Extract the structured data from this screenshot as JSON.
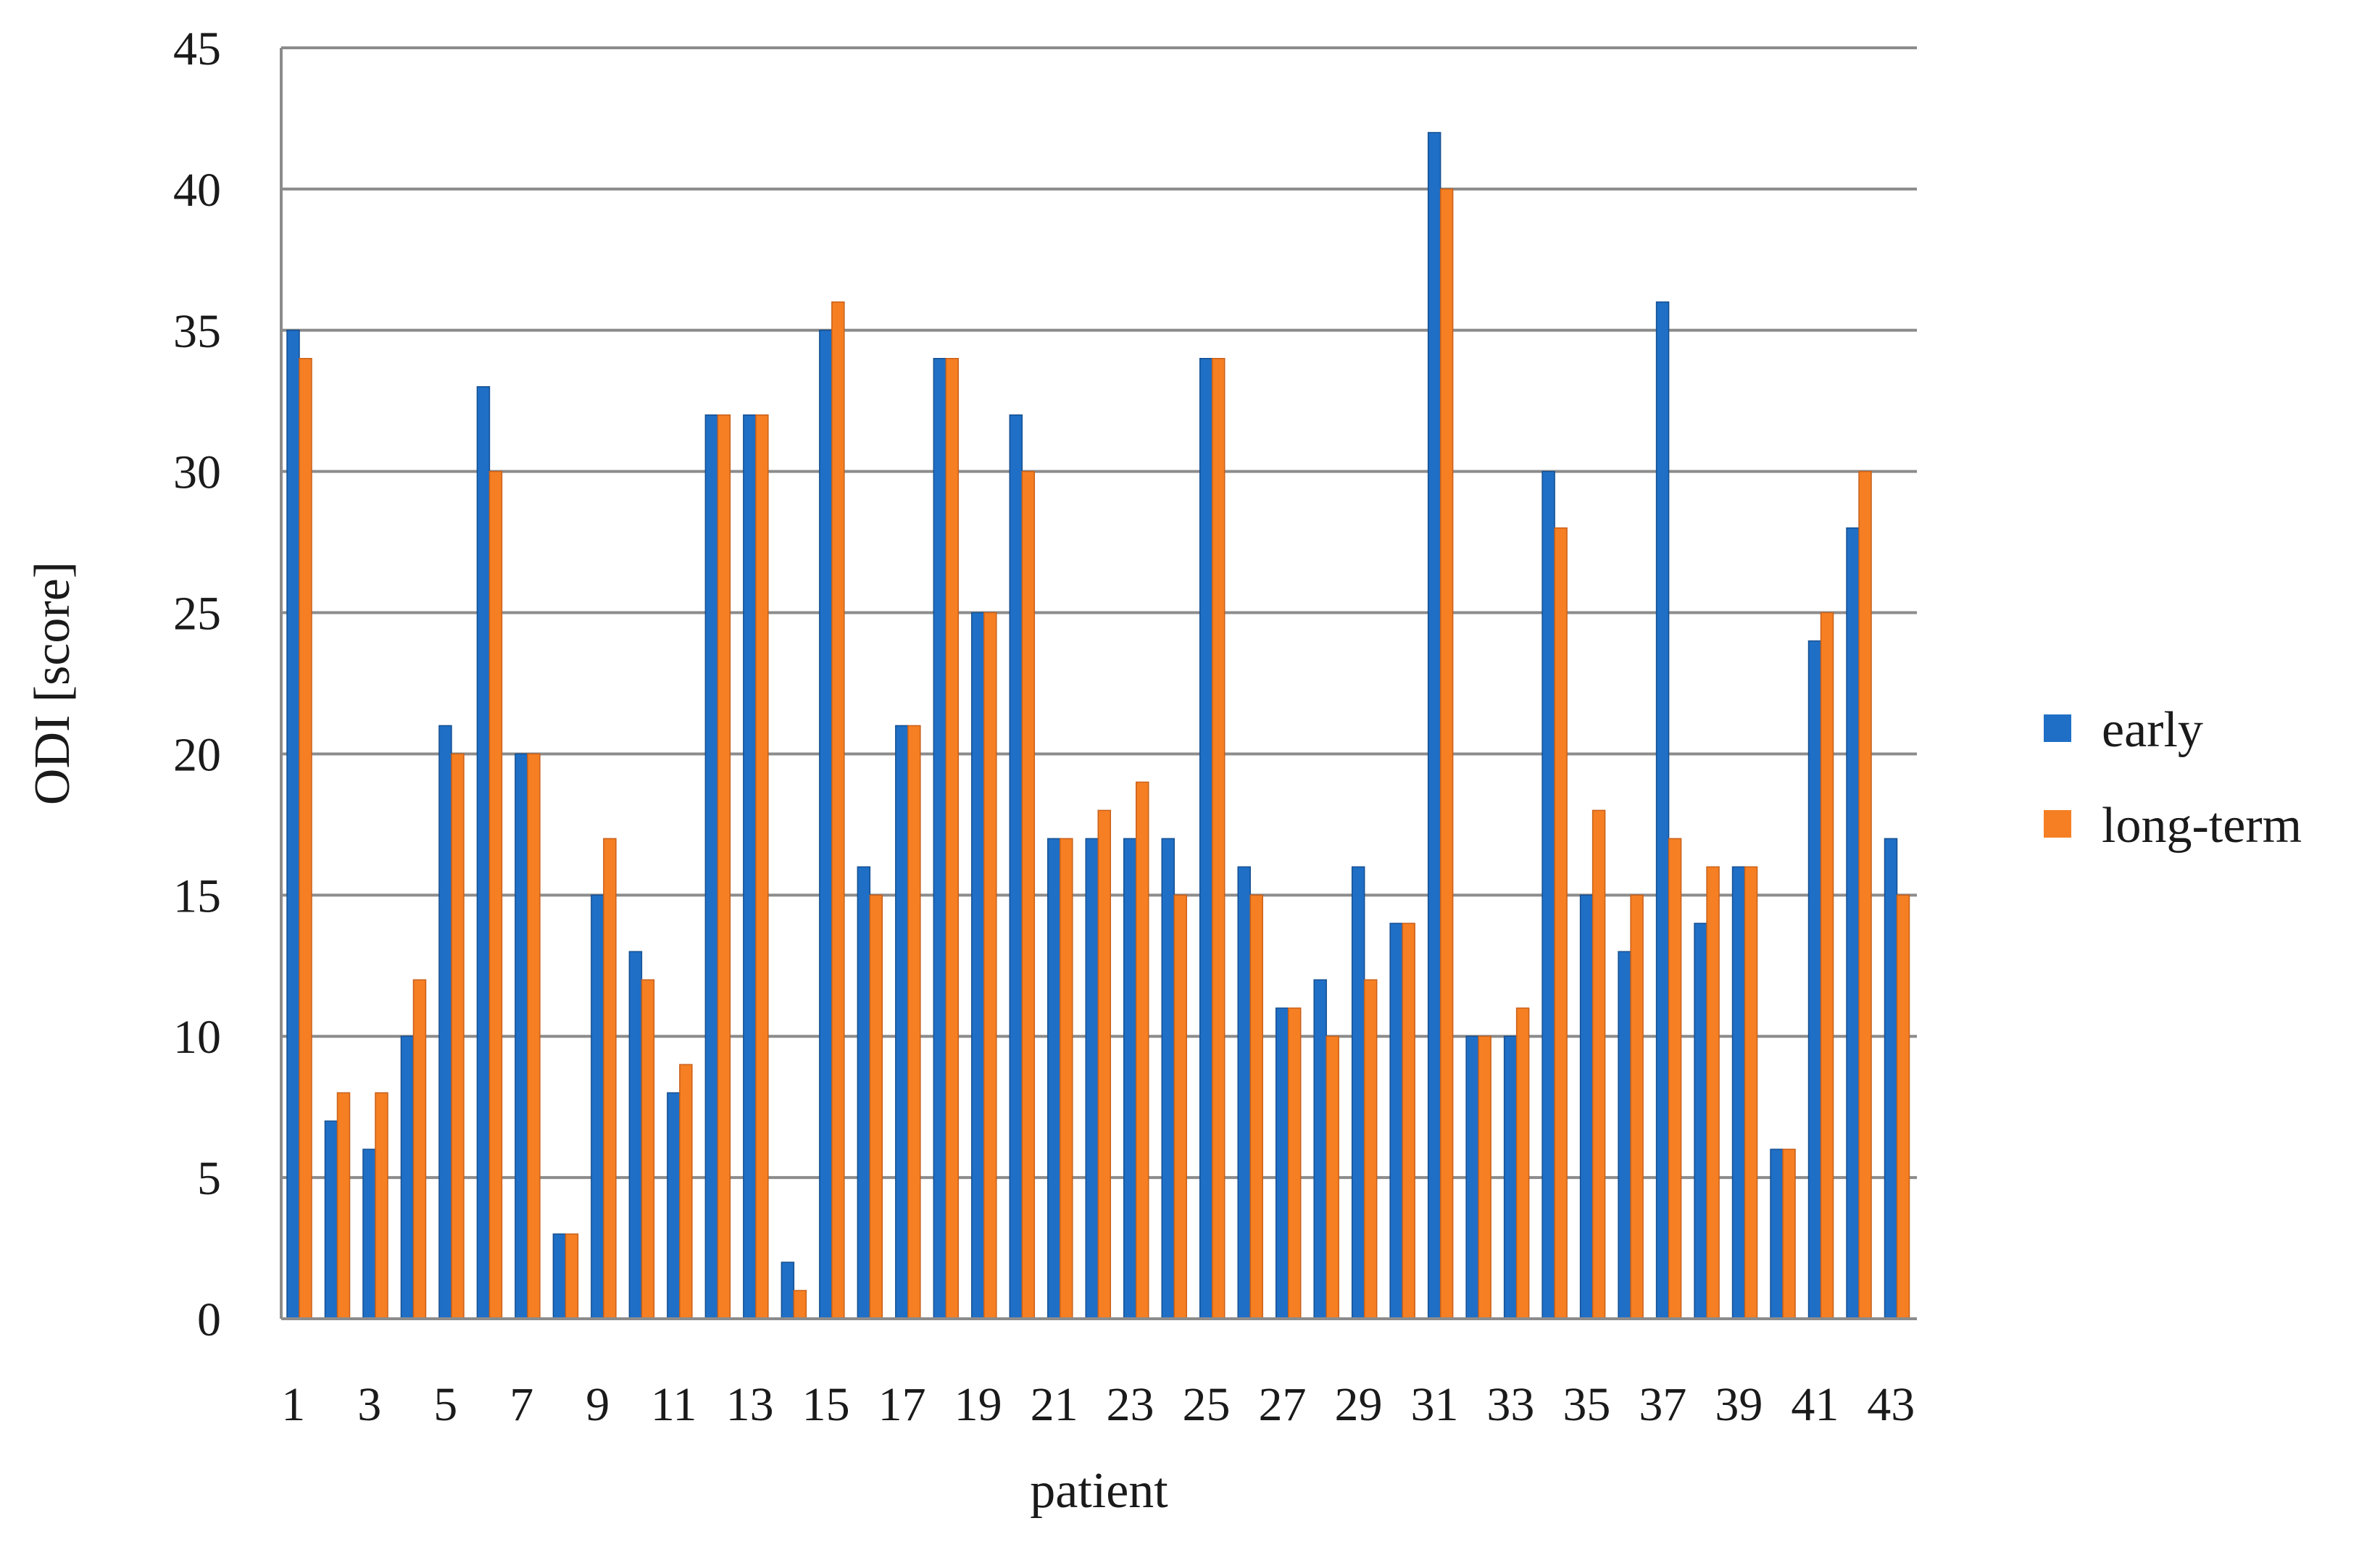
{
  "chart_data": {
    "type": "bar",
    "xlabel": "patient",
    "ylabel": "ODI [score]",
    "ylim": [
      0,
      45
    ],
    "ytick_step": 5,
    "grid": true,
    "legend_position": "right",
    "categories": [
      "1",
      "2",
      "3",
      "4",
      "5",
      "6",
      "7",
      "8",
      "9",
      "10",
      "11",
      "12",
      "13",
      "14",
      "15",
      "16",
      "17",
      "18",
      "19",
      "20",
      "21",
      "22",
      "23",
      "24",
      "25",
      "26",
      "27",
      "28",
      "29",
      "30",
      "31",
      "32",
      "33",
      "34",
      "35",
      "36",
      "37",
      "38",
      "39",
      "40",
      "41",
      "42",
      "43"
    ],
    "xtick_labels": [
      "1",
      "",
      "3",
      "",
      "5",
      "",
      "7",
      "",
      "9",
      "",
      "11",
      "",
      "13",
      "",
      "15",
      "",
      "17",
      "",
      "19",
      "",
      "21",
      "",
      "23",
      "",
      "25",
      "",
      "27",
      "",
      "29",
      "",
      "31",
      "",
      "33",
      "",
      "35",
      "",
      "37",
      "",
      "39",
      "",
      "41",
      "",
      "43"
    ],
    "series": [
      {
        "name": "early",
        "color": "#1f6fc6",
        "values": [
          35,
          7,
          6,
          10,
          21,
          33,
          20,
          3,
          15,
          13,
          8,
          32,
          32,
          2,
          35,
          16,
          21,
          34,
          25,
          32,
          17,
          17,
          17,
          17,
          34,
          16,
          11,
          12,
          16,
          14,
          42,
          10,
          10,
          30,
          15,
          13,
          36,
          14,
          16,
          6,
          24,
          28,
          17
        ]
      },
      {
        "name": "long-term",
        "color": "#f57f22",
        "values": [
          34,
          8,
          8,
          12,
          20,
          30,
          20,
          3,
          17,
          12,
          9,
          32,
          32,
          1,
          36,
          15,
          21,
          34,
          25,
          30,
          17,
          18,
          19,
          15,
          34,
          15,
          11,
          10,
          12,
          14,
          40,
          10,
          11,
          28,
          18,
          15,
          17,
          16,
          16,
          6,
          25,
          30,
          15
        ]
      }
    ]
  }
}
